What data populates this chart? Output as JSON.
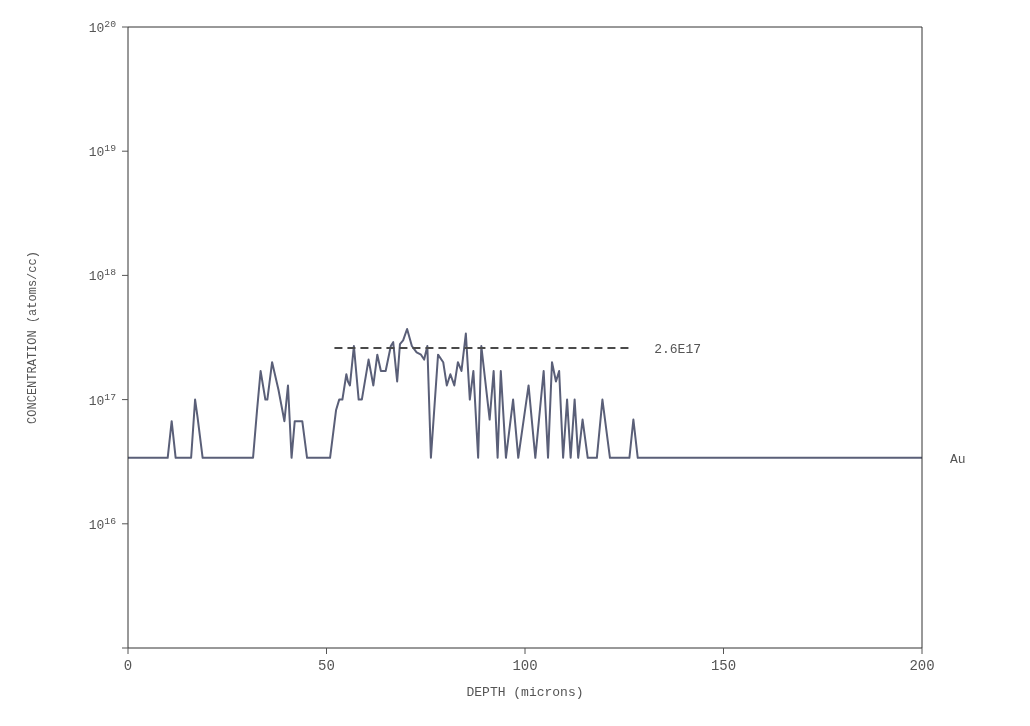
{
  "chart_data": {
    "type": "line",
    "xlabel": "DEPTH (microns)",
    "ylabel": "CONCENTRATION (atoms/cc)",
    "log": "y",
    "grid": false,
    "marker": "none",
    "xlim": [
      0,
      200
    ],
    "xticks": [
      0,
      50,
      100,
      150,
      200
    ],
    "ylim": [
      1000000000000000.0,
      1e+20
    ],
    "yticks": [
      {
        "value": 1000000000000000.0,
        "label": null
      },
      {
        "value": 1e+16,
        "label": "10$^{16}$"
      },
      {
        "value": 1e+17,
        "label": "10$^{17}$"
      },
      {
        "value": 1e+18,
        "label": "10$^{18}$"
      },
      {
        "value": 1e+19,
        "label": "10$^{19}$"
      },
      {
        "value": 1e+20,
        "label": "10$^{20}$"
      }
    ],
    "series": [
      {
        "name": "Au",
        "line_style": "solid",
        "color": "#5a5f78",
        "x": [
          0,
          10,
          11,
          12,
          15.9,
          16.9,
          17.5,
          18.8,
          31.5,
          32.5,
          33.4,
          34.6,
          35.1,
          36.3,
          37.9,
          39.4,
          40.3,
          41.2,
          42,
          43.9,
          45.1,
          50.9,
          52.4,
          53.2,
          54,
          55,
          55.4,
          55.9,
          56.9,
          58.1,
          58.9,
          60.6,
          61.8,
          62.8,
          63.7,
          64.9,
          66.2,
          66.8,
          67.8,
          68.5,
          69.3,
          70.3,
          71.5,
          72.7,
          73.8,
          74.6,
          75.4,
          76.3,
          78.1,
          79.4,
          80.3,
          81.2,
          82.2,
          83.1,
          84,
          85.1,
          86.1,
          87,
          88.2,
          89,
          91.1,
          92.1,
          93.1,
          93.9,
          95.2,
          97,
          98.3,
          100.9,
          102.6,
          104.7,
          105.8,
          106.8,
          107.8,
          108.6,
          109.6,
          110.6,
          111.5,
          112.5,
          113.4,
          114.5,
          115.8,
          118.1,
          119.5,
          121.4,
          126.3,
          127.3,
          128.4,
          200
        ],
        "values": [
          3.4e+16,
          3.4e+16,
          6.7e+16,
          3.4e+16,
          3.4e+16,
          1e+17,
          7.3e+16,
          3.4e+16,
          3.4e+16,
          8.2e+16,
          1.7e+17,
          1e+17,
          1e+17,
          2e+17,
          1.2e+17,
          6.7e+16,
          1.3e+17,
          3.4e+16,
          6.7e+16,
          6.7e+16,
          3.4e+16,
          3.4e+16,
          8.2e+16,
          1e+17,
          1e+17,
          1.6e+17,
          1.4e+17,
          1.3e+17,
          2.7e+17,
          1e+17,
          1e+17,
          2.1e+17,
          1.3e+17,
          2.3e+17,
          1.7e+17,
          1.7e+17,
          2.7e+17,
          2.9e+17,
          1.4e+17,
          2.8e+17,
          3e+17,
          3.7e+17,
          2.7e+17,
          2.4e+17,
          2.3e+17,
          2.1e+17,
          2.7e+17,
          3.4e+16,
          2.3e+17,
          2e+17,
          1.3e+17,
          1.6e+17,
          1.3e+17,
          2e+17,
          1.7e+17,
          3.4e+17,
          1e+17,
          1.7e+17,
          3.4e+16,
          2.7e+17,
          6.9e+16,
          1.7e+17,
          3.4e+16,
          1.7e+17,
          3.4e+16,
          1e+17,
          3.4e+16,
          1.3e+17,
          3.4e+16,
          1.7e+17,
          3.4e+16,
          2e+17,
          1.4e+17,
          1.7e+17,
          3.4e+16,
          1e+17,
          3.4e+16,
          1e+17,
          3.4e+16,
          6.9e+16,
          3.4e+16,
          3.4e+16,
          1e+17,
          3.4e+16,
          3.4e+16,
          6.9e+16,
          3.4e+16,
          3.4e+16
        ]
      },
      {
        "name": "2.6E17",
        "line_style": "dashed",
        "color": "#4a4a4a",
        "x": [
          52,
          127
        ],
        "values": [
          2.6e+17,
          2.6e+17
        ]
      }
    ]
  }
}
